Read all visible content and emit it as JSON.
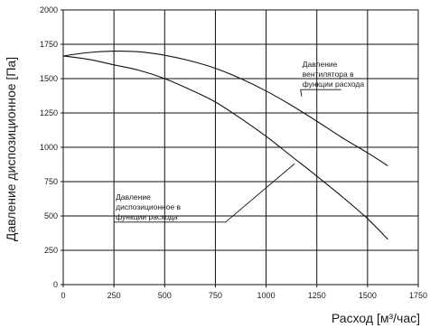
{
  "chart_data": {
    "type": "line",
    "title": "",
    "xlabel": "Расход [м³/час]",
    "ylabel": "Давление диспозиционное [Па]",
    "xlim": [
      0,
      1750
    ],
    "ylim": [
      0,
      2000
    ],
    "xticks": [
      0,
      250,
      500,
      750,
      1000,
      1250,
      1500,
      1750
    ],
    "yticks": [
      0,
      250,
      500,
      750,
      1000,
      1250,
      1500,
      1750,
      2000
    ],
    "grid": true,
    "series": [
      {
        "id": "fan",
        "points": [
          [
            0,
            1665
          ],
          [
            125,
            1690
          ],
          [
            250,
            1700
          ],
          [
            375,
            1695
          ],
          [
            500,
            1670
          ],
          [
            625,
            1630
          ],
          [
            750,
            1575
          ],
          [
            875,
            1500
          ],
          [
            1000,
            1410
          ],
          [
            1125,
            1305
          ],
          [
            1250,
            1190
          ],
          [
            1375,
            1070
          ],
          [
            1500,
            960
          ],
          [
            1600,
            865
          ]
        ]
      },
      {
        "id": "available",
        "points": [
          [
            0,
            1665
          ],
          [
            125,
            1640
          ],
          [
            250,
            1600
          ],
          [
            375,
            1560
          ],
          [
            500,
            1500
          ],
          [
            625,
            1420
          ],
          [
            750,
            1330
          ],
          [
            875,
            1210
          ],
          [
            1000,
            1080
          ],
          [
            1125,
            935
          ],
          [
            1250,
            790
          ],
          [
            1375,
            640
          ],
          [
            1500,
            480
          ],
          [
            1600,
            330
          ]
        ]
      }
    ],
    "annotations": [
      {
        "id": "fan",
        "lines": [
          "Давление",
          "вентилятора в",
          "функции расхода"
        ],
        "anchor": [
          1370,
          1420
        ],
        "elbow": [
          1170,
          1420
        ],
        "target": [
          1175,
          1370
        ]
      },
      {
        "id": "available",
        "lines": [
          "Давление",
          "диспозиционное в",
          "функции расхода"
        ],
        "anchor": [
          250,
          455
        ],
        "elbow": [
          800,
          455
        ],
        "target": [
          1140,
          880
        ]
      }
    ]
  }
}
